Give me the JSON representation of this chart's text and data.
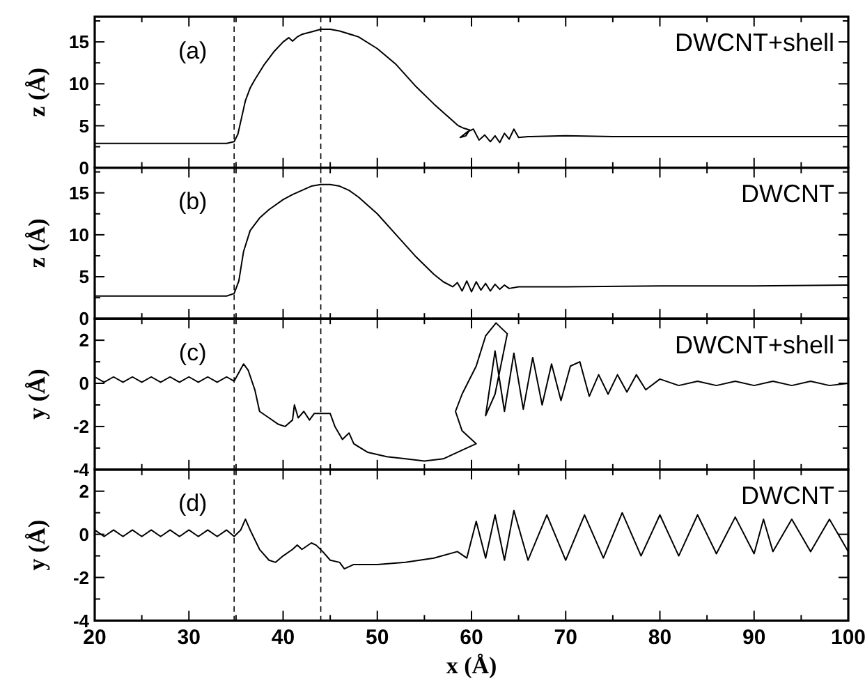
{
  "chart_data": [
    {
      "type": "line",
      "ylabel": "z (Å)",
      "annotations": [
        "(a)",
        "DWCNT+shell"
      ],
      "xlim": [
        20,
        100
      ],
      "xticks": [
        20,
        {
          "value": 25,
          "label": null
        },
        30,
        {
          "value": 35,
          "label": null
        },
        40,
        {
          "value": 45,
          "label": null
        },
        50,
        {
          "value": 55,
          "label": null
        },
        60,
        {
          "value": 65,
          "label": null
        },
        70,
        {
          "value": 75,
          "label": null
        },
        80,
        {
          "value": 85,
          "label": null
        },
        90,
        {
          "value": 95,
          "label": null
        },
        100
      ],
      "ylim": [
        0,
        18
      ],
      "yticks": [
        0,
        {
          "value": 2.5,
          "label": null
        },
        5,
        {
          "value": 7.5,
          "label": null
        },
        10,
        {
          "value": 12.5,
          "label": null
        },
        15,
        {
          "value": 17.5,
          "label": null
        }
      ],
      "tick_labels": "y",
      "ref_lines": [
        {
          "axis": "x",
          "value": 34.8,
          "line_style": "dashed"
        },
        {
          "axis": "x",
          "value": 44,
          "line_style": "dashed"
        }
      ],
      "series": [
        {
          "color": "#000000",
          "x": [
            20,
            25,
            30,
            34,
            34.8,
            35.2,
            35.6,
            36,
            36.5,
            37,
            38,
            39,
            40,
            40.6,
            41,
            41.5,
            42,
            43,
            44,
            45,
            46,
            48,
            50,
            52,
            54,
            56,
            57,
            58,
            58.6,
            59.2,
            59.8,
            59.4,
            58.8,
            59.6,
            60.2,
            60.8,
            61.4,
            62,
            62.5,
            63,
            63.5,
            64,
            64.5,
            65,
            66,
            70,
            75,
            80,
            90,
            100
          ],
          "values": [
            2.9,
            2.9,
            2.9,
            2.9,
            3.1,
            4,
            6,
            8,
            9.5,
            10.5,
            12.3,
            13.8,
            15,
            15.5,
            15.1,
            15.6,
            15.9,
            16.2,
            16.5,
            16.5,
            16.3,
            15.6,
            14.2,
            12.3,
            9.8,
            7.6,
            6.6,
            5.6,
            5.0,
            4.7,
            4.5,
            3.8,
            3.6,
            4.3,
            4.6,
            3.3,
            3.9,
            3.1,
            3.8,
            3.0,
            4.1,
            3.4,
            4.6,
            3.6,
            3.7,
            3.8,
            3.7,
            3.7,
            3.7,
            3.7
          ]
        }
      ]
    },
    {
      "type": "line",
      "ylabel": "z (Å)",
      "annotations": [
        "(b)",
        "DWCNT"
      ],
      "xlim": [
        20,
        100
      ],
      "xticks": [
        20,
        {
          "value": 25,
          "label": null
        },
        30,
        {
          "value": 35,
          "label": null
        },
        40,
        {
          "value": 45,
          "label": null
        },
        50,
        {
          "value": 55,
          "label": null
        },
        60,
        {
          "value": 65,
          "label": null
        },
        70,
        {
          "value": 75,
          "label": null
        },
        80,
        {
          "value": 85,
          "label": null
        },
        90,
        {
          "value": 95,
          "label": null
        },
        100
      ],
      "ylim": [
        0,
        18
      ],
      "yticks": [
        0,
        {
          "value": 2.5,
          "label": null
        },
        5,
        {
          "value": 7.5,
          "label": null
        },
        10,
        {
          "value": 12.5,
          "label": null
        },
        15,
        {
          "value": 17.5,
          "label": null
        }
      ],
      "tick_labels": "y",
      "ref_lines": [
        {
          "axis": "x",
          "value": 34.8,
          "line_style": "dashed"
        },
        {
          "axis": "x",
          "value": 44,
          "line_style": "dashed"
        }
      ],
      "series": [
        {
          "color": "#000000",
          "x": [
            20,
            25,
            30,
            34,
            34.8,
            35.3,
            35.8,
            36.5,
            37.5,
            38.5,
            40,
            41,
            42,
            43,
            44,
            45,
            46,
            47,
            48,
            50,
            52,
            54,
            56,
            57,
            58,
            58.5,
            59,
            59.5,
            60,
            60.5,
            61,
            61.5,
            62,
            62.5,
            63,
            63.5,
            64,
            65,
            70,
            80,
            90,
            100
          ],
          "values": [
            2.7,
            2.7,
            2.7,
            2.7,
            3.0,
            4.5,
            8,
            10.5,
            12,
            13,
            14.2,
            14.8,
            15.3,
            15.8,
            16.0,
            16.0,
            15.8,
            15.3,
            14.5,
            12.5,
            10,
            7.5,
            5.3,
            4.4,
            3.8,
            4.3,
            3.3,
            4.5,
            3.2,
            4.4,
            3.4,
            4.2,
            3.3,
            4.1,
            3.5,
            4.0,
            3.6,
            3.8,
            3.8,
            3.9,
            3.9,
            4.0
          ]
        }
      ]
    },
    {
      "type": "line",
      "ylabel": "y (Å)",
      "annotations": [
        "(c)",
        "DWCNT+shell"
      ],
      "xlim": [
        20,
        100
      ],
      "xticks": [
        20,
        {
          "value": 25,
          "label": null
        },
        30,
        {
          "value": 35,
          "label": null
        },
        40,
        {
          "value": 45,
          "label": null
        },
        50,
        {
          "value": 55,
          "label": null
        },
        60,
        {
          "value": 65,
          "label": null
        },
        70,
        {
          "value": 75,
          "label": null
        },
        80,
        {
          "value": 85,
          "label": null
        },
        90,
        {
          "value": 95,
          "label": null
        },
        100
      ],
      "ylim": [
        -4,
        3
      ],
      "yticks": [
        -4,
        {
          "value": -3,
          "label": null
        },
        -2,
        {
          "value": -1,
          "label": null
        },
        0,
        {
          "value": 1,
          "label": null
        },
        2
      ],
      "tick_labels": "y",
      "ref_lines": [
        {
          "axis": "x",
          "value": 34.8,
          "line_style": "dashed"
        },
        {
          "axis": "x",
          "value": 44,
          "line_style": "dashed"
        }
      ],
      "series": [
        {
          "color": "#000000",
          "x": [
            20,
            21,
            22,
            23,
            24,
            25,
            26,
            27,
            28,
            29,
            30,
            31,
            32,
            33,
            34,
            34.8,
            35.8,
            36.3,
            37,
            37.5,
            38.5,
            39.5,
            40.2,
            41,
            41.2,
            41.6,
            42.2,
            42.8,
            43.3,
            44,
            45,
            45.5,
            46.3,
            47,
            47.5,
            49,
            51,
            53,
            55,
            57,
            59,
            60.5,
            59,
            58.3,
            59,
            60.5,
            61.5,
            62.6,
            63.8,
            62.5,
            61.5,
            62.5,
            63.5,
            64.5,
            65.5,
            66.5,
            67.5,
            68.5,
            69.5,
            70.5,
            71.5,
            72.5,
            73.5,
            74.5,
            75.5,
            76.5,
            77.5,
            78.5,
            80,
            82,
            84,
            86,
            88,
            90,
            92,
            94,
            96,
            98,
            100
          ],
          "values": [
            0.3,
            0.05,
            0.3,
            0.05,
            0.3,
            0.05,
            0.3,
            0.05,
            0.3,
            0.05,
            0.3,
            0.05,
            0.3,
            0.05,
            0.3,
            0.1,
            0.9,
            0.6,
            -0.3,
            -1.3,
            -1.6,
            -1.9,
            -2.0,
            -1.7,
            -1.0,
            -1.6,
            -1.3,
            -1.7,
            -1.4,
            -1.4,
            -1.4,
            -2.0,
            -2.6,
            -2.3,
            -2.8,
            -3.2,
            -3.4,
            -3.5,
            -3.6,
            -3.5,
            -3.1,
            -2.8,
            -2.2,
            -1.3,
            -0.5,
            0.8,
            2.2,
            2.8,
            2.3,
            -0.5,
            -1.5,
            1.5,
            -1.3,
            1.4,
            -1.2,
            1.2,
            -1.0,
            0.9,
            -0.8,
            0.8,
            1.0,
            -0.6,
            0.4,
            -0.5,
            0.4,
            -0.4,
            0.4,
            -0.3,
            0.2,
            -0.1,
            0.1,
            -0.1,
            0.1,
            -0.1,
            0.1,
            -0.1,
            0.1,
            -0.1,
            0.0
          ]
        }
      ]
    },
    {
      "type": "line",
      "xlabel": "x (Å)",
      "ylabel": "y (Å)",
      "annotations": [
        "(d)",
        "DWCNT"
      ],
      "xlim": [
        20,
        100
      ],
      "xticks": [
        20,
        {
          "value": 25,
          "label": null
        },
        30,
        {
          "value": 35,
          "label": null
        },
        40,
        {
          "value": 45,
          "label": null
        },
        50,
        {
          "value": 55,
          "label": null
        },
        60,
        {
          "value": 65,
          "label": null
        },
        70,
        {
          "value": 75,
          "label": null
        },
        80,
        {
          "value": 85,
          "label": null
        },
        90,
        {
          "value": 95,
          "label": null
        },
        100
      ],
      "ylim": [
        -4,
        3
      ],
      "yticks": [
        -4,
        {
          "value": -3,
          "label": null
        },
        -2,
        {
          "value": -1,
          "label": null
        },
        0,
        {
          "value": 1,
          "label": null
        },
        2
      ],
      "ref_lines": [
        {
          "axis": "x",
          "value": 34.8,
          "line_style": "dashed"
        },
        {
          "axis": "x",
          "value": 44,
          "line_style": "dashed"
        }
      ],
      "series": [
        {
          "color": "#000000",
          "x": [
            20,
            21,
            22,
            23,
            24,
            25,
            26,
            27,
            28,
            29,
            30,
            31,
            32,
            33,
            34,
            34.8,
            35.5,
            36,
            36.5,
            37.5,
            38.5,
            39.2,
            40,
            41,
            41.5,
            42,
            43,
            43.5,
            44.2,
            45,
            46,
            46.5,
            47.5,
            50,
            53,
            56,
            58.5,
            59.5,
            60.5,
            61.5,
            62.5,
            63.5,
            64.5,
            66,
            68,
            70,
            72,
            74,
            76,
            78,
            80,
            82,
            84,
            86,
            88,
            90,
            91,
            92,
            94,
            96,
            98,
            100
          ],
          "values": [
            0.2,
            -0.1,
            0.2,
            -0.1,
            0.2,
            -0.1,
            0.2,
            -0.1,
            0.2,
            -0.1,
            0.2,
            -0.1,
            0.2,
            -0.1,
            0.2,
            -0.1,
            0.2,
            0.7,
            0.2,
            -0.7,
            -1.2,
            -1.3,
            -1.0,
            -0.7,
            -0.5,
            -0.7,
            -0.4,
            -0.5,
            -0.8,
            -1.2,
            -1.3,
            -1.6,
            -1.4,
            -1.4,
            -1.3,
            -1.1,
            -0.8,
            -1.1,
            0.6,
            -1.1,
            0.9,
            -1.2,
            1.1,
            -1.2,
            0.9,
            -1.2,
            0.9,
            -1.1,
            1.0,
            -1.0,
            0.9,
            -1.0,
            0.9,
            -0.9,
            0.8,
            -0.9,
            0.7,
            -0.8,
            0.7,
            -0.8,
            0.7,
            -0.8
          ]
        }
      ]
    }
  ]
}
